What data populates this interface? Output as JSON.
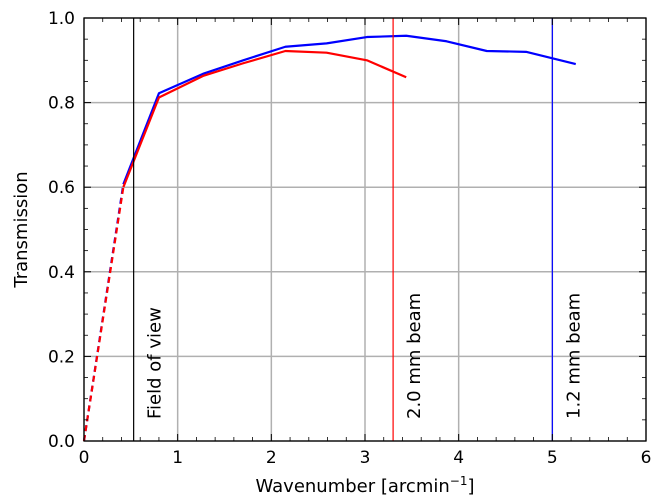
{
  "chart_data": {
    "type": "line",
    "xlabel": "Wavenumber [arcmin",
    "xlabel_sup": "−1",
    "xlabel_suffix": "]",
    "ylabel": "Transmission",
    "xlim": [
      0,
      6
    ],
    "ylim": [
      0,
      1.0
    ],
    "x_ticks": [
      "0",
      "1",
      "2",
      "3",
      "4",
      "5",
      "6"
    ],
    "y_ticks": [
      "0.0",
      "0.2",
      "0.4",
      "0.6",
      "0.8",
      "1.0"
    ],
    "grid": true,
    "series": [
      {
        "color": "#0000ff",
        "x": [
          0.42,
          0.8,
          1.27,
          1.7,
          2.15,
          2.59,
          3.02,
          3.44,
          3.87,
          4.3,
          4.72,
          5.25
        ],
        "y": [
          0.607,
          0.822,
          0.868,
          0.9,
          0.932,
          0.94,
          0.955,
          0.958,
          0.945,
          0.922,
          0.92,
          0.891
        ],
        "dashed_x": [
          0.0,
          0.42
        ],
        "dashed_y": [
          0.0,
          0.607
        ]
      },
      {
        "color": "#ff0000",
        "x": [
          0.42,
          0.8,
          1.27,
          1.7,
          2.15,
          2.59,
          3.02,
          3.44
        ],
        "y": [
          0.6,
          0.812,
          0.863,
          0.893,
          0.922,
          0.918,
          0.9,
          0.86
        ],
        "dashed_x": [
          0.0,
          0.42
        ],
        "dashed_y": [
          0.0,
          0.6
        ]
      }
    ],
    "vlines": [
      {
        "x": 0.53,
        "color": "#000000",
        "label": "Field of view"
      },
      {
        "x": 3.3,
        "color": "#ff0000",
        "label": "2.0 mm beam"
      },
      {
        "x": 5.0,
        "color": "#0000ff",
        "label": "1.2 mm beam"
      }
    ]
  }
}
